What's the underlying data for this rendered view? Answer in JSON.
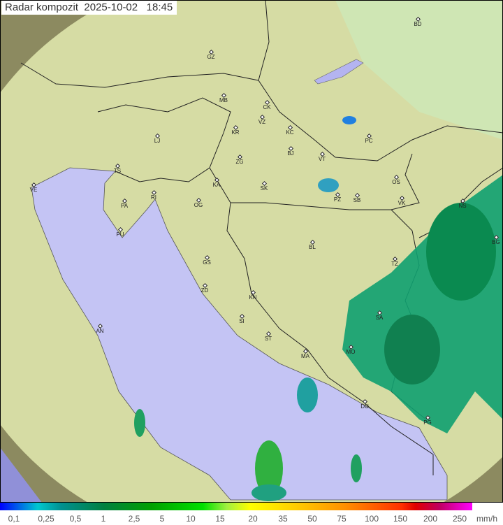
{
  "title": {
    "label": "Radar kompozit",
    "date": "2025-10-02",
    "time": "18:45"
  },
  "legend": {
    "unit": "mm/h",
    "ticks": [
      "0,1",
      "0,25",
      "0,5",
      "1",
      "2,5",
      "5",
      "10",
      "15",
      "20",
      "35",
      "50",
      "75",
      "100",
      "150",
      "200",
      "250"
    ]
  },
  "colors": {
    "sea": "#c4c4f4",
    "land": "#d8dca0",
    "outside": "#8c8a60",
    "rain_light": "#10b0a0",
    "rain_mid": "#109060",
    "rain_heavy": "#30d030"
  },
  "cities": [
    "GZ",
    "MB",
    "CK",
    "VZ",
    "KR",
    "KC",
    "BJ",
    "LJ",
    "ZG",
    "VT",
    "PC",
    "BD",
    "TS",
    "VE",
    "KA",
    "SK",
    "OS",
    "RI",
    "PA",
    "OG",
    "PZ",
    "SB",
    "VK",
    "NS",
    "PU",
    "BL",
    "BG",
    "GS",
    "TZ",
    "ZD",
    "KN",
    "SA",
    "AN",
    "SI",
    "ST",
    "MA",
    "MO",
    "DU",
    "PG"
  ]
}
